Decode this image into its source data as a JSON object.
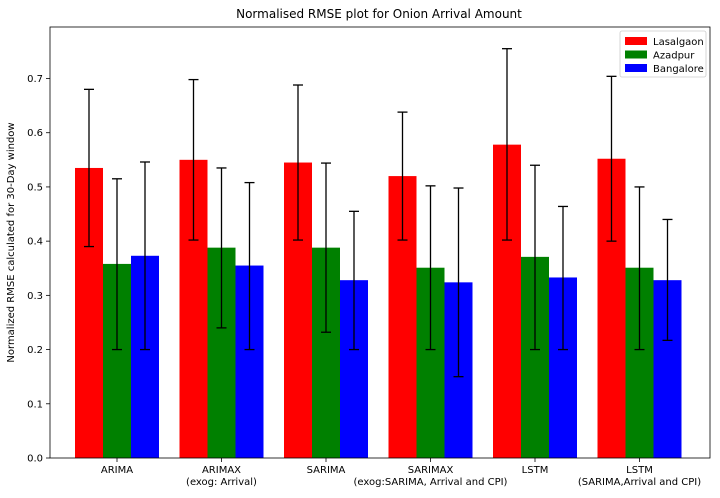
{
  "chart_data": {
    "type": "bar",
    "title": "Normalised RMSE plot for Onion Arrival Amount",
    "xlabel": "",
    "ylabel": "Normalized RMSE calculated for 30-Day window",
    "ylim": [
      0,
      0.795
    ],
    "yticks": [
      0.0,
      0.1,
      0.2,
      0.3,
      0.4,
      0.5,
      0.6,
      0.7
    ],
    "ytick_labels": [
      "0.0",
      "0.1",
      "0.2",
      "0.3",
      "0.4",
      "0.5",
      "0.6",
      "0.7"
    ],
    "categories": [
      [
        "ARIMA"
      ],
      [
        "ARIMAX",
        "(exog: Arrival)"
      ],
      [
        "SARIMA"
      ],
      [
        "SARIMAX",
        "(exog:SARIMA, Arrival and CPI)"
      ],
      [
        "LSTM"
      ],
      [
        "LSTM",
        "(SARIMA,Arrival and CPI)"
      ]
    ],
    "grid": false,
    "legend_position": "top-right",
    "series": [
      {
        "name": "Lasalgaon",
        "color": "#ff0000",
        "values": [
          0.535,
          0.55,
          0.545,
          0.52,
          0.578,
          0.552
        ],
        "err_low": [
          0.39,
          0.402,
          0.402,
          0.402,
          0.402,
          0.4
        ],
        "err_high": [
          0.68,
          0.698,
          0.688,
          0.638,
          0.755,
          0.704
        ]
      },
      {
        "name": "Azadpur",
        "color": "#008000",
        "values": [
          0.358,
          0.388,
          0.388,
          0.351,
          0.371,
          0.351
        ],
        "err_low": [
          0.2,
          0.24,
          0.232,
          0.2,
          0.2,
          0.2
        ],
        "err_high": [
          0.515,
          0.535,
          0.544,
          0.502,
          0.54,
          0.5
        ]
      },
      {
        "name": "Bangalore",
        "color": "#0000ff",
        "values": [
          0.373,
          0.355,
          0.328,
          0.324,
          0.333,
          0.328
        ],
        "err_low": [
          0.2,
          0.2,
          0.2,
          0.15,
          0.2,
          0.217
        ],
        "err_high": [
          0.546,
          0.508,
          0.455,
          0.498,
          0.464,
          0.44
        ]
      }
    ]
  }
}
